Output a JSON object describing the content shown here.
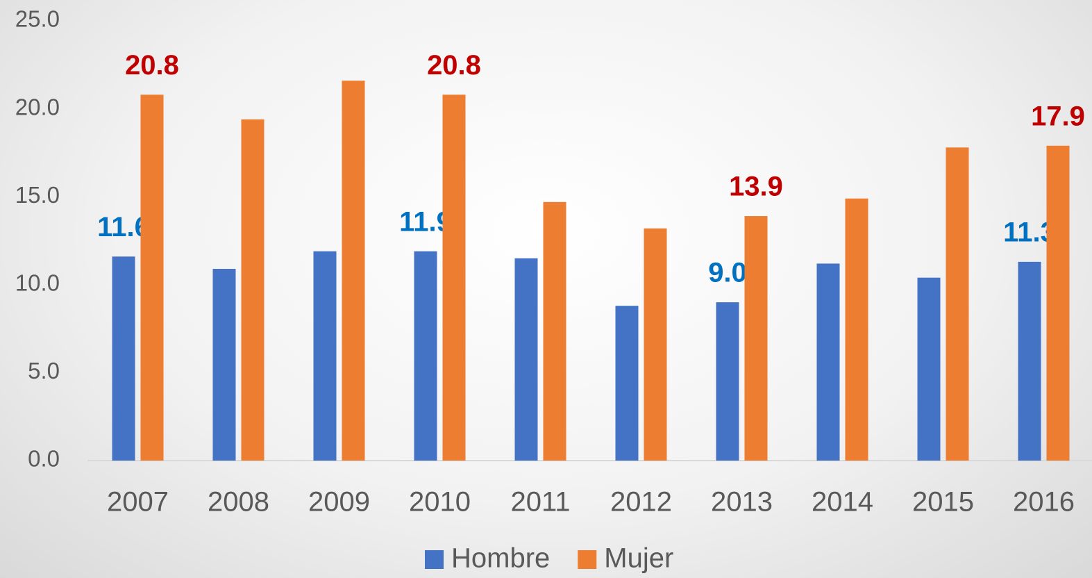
{
  "chart_data": {
    "type": "bar",
    "categories": [
      "2007",
      "2008",
      "2009",
      "2010",
      "2011",
      "2012",
      "2013",
      "2014",
      "2015",
      "2016"
    ],
    "series": [
      {
        "name": "Hombre",
        "color": "#4472c4",
        "label_color": "#0070c0",
        "values": [
          11.6,
          10.9,
          11.9,
          11.9,
          11.5,
          8.8,
          9.0,
          11.2,
          10.4,
          11.3
        ],
        "value_labels": [
          "11.6",
          null,
          null,
          "11.9",
          null,
          null,
          "9.0",
          null,
          null,
          "11.3"
        ]
      },
      {
        "name": "Mujer",
        "color": "#ed7d31",
        "label_color": "#c00000",
        "values": [
          20.8,
          19.4,
          21.6,
          20.8,
          14.7,
          13.2,
          13.9,
          14.9,
          17.8,
          17.9
        ],
        "value_labels": [
          "20.8",
          null,
          null,
          "20.8",
          null,
          null,
          "13.9",
          null,
          null,
          "17.9"
        ]
      }
    ],
    "ylim": [
      0,
      25
    ],
    "yticks": [
      {
        "value": 0,
        "label": "0.0"
      },
      {
        "value": 5,
        "label": "5.0"
      },
      {
        "value": 10,
        "label": "10.0"
      },
      {
        "value": 15,
        "label": "15.0"
      },
      {
        "value": 20,
        "label": "20.0"
      },
      {
        "value": 25,
        "label": "25.0"
      }
    ],
    "grid": false,
    "legend": "bottom"
  }
}
